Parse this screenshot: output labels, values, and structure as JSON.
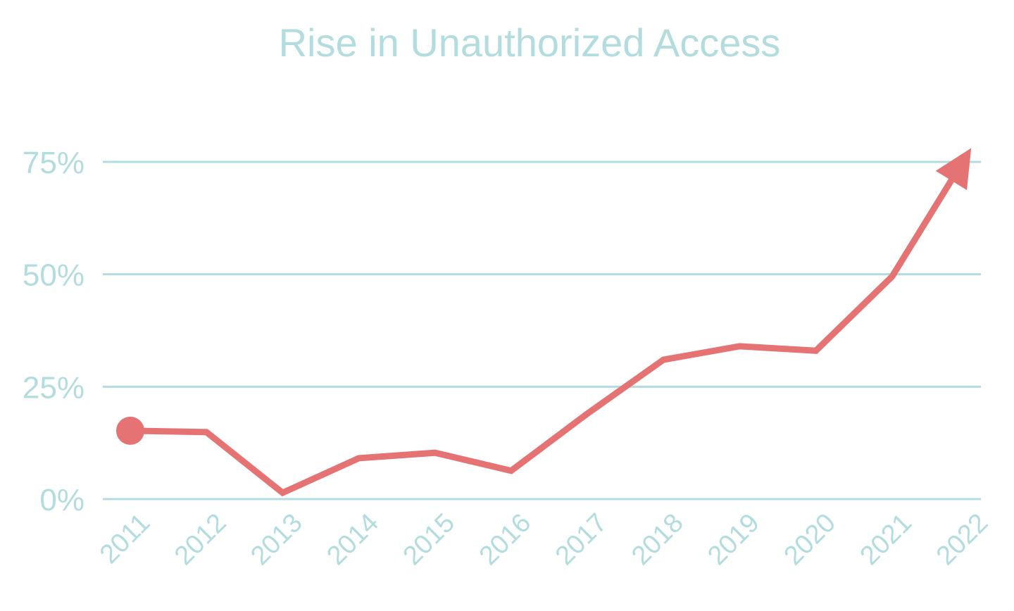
{
  "chart_data": {
    "type": "line",
    "title": "Rise in Unauthorized Access",
    "xlabel": "",
    "ylabel": "",
    "categories": [
      "2011",
      "2012",
      "2013",
      "2014",
      "2015",
      "2016",
      "2017",
      "2018",
      "2019",
      "2020",
      "2021",
      "2022"
    ],
    "series": [
      {
        "name": "Unauthorized Access",
        "values": [
          15.2,
          14.9,
          1.4,
          9.1,
          10.3,
          6.3,
          19.0,
          31.0,
          34.0,
          33.0,
          49.5,
          77.0
        ],
        "color": "#e57373",
        "start_marker": "circle",
        "end_marker": "arrow"
      }
    ],
    "ylim": [
      0,
      75
    ],
    "yticks": [
      0,
      25,
      50,
      75
    ],
    "ytick_labels": [
      "0%",
      "25%",
      "50%",
      "75%"
    ],
    "grid": true,
    "legend": "none",
    "text_color": "#b3dcdf",
    "grid_color": "#b3dcdf"
  }
}
